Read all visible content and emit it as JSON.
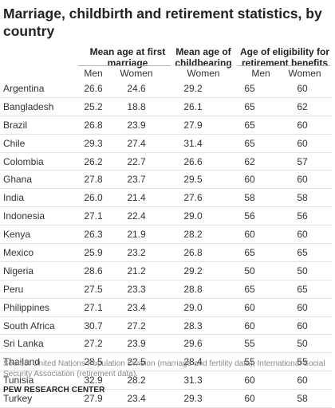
{
  "title": "Marriage, childbirth and retirement statistics, by country",
  "groups": {
    "marriage": "Mean age at first marriage",
    "childbearing": "Mean age of childbearing",
    "retirement": "Age of eligibility for retirement benefits"
  },
  "subheaders": [
    "Men",
    "Women",
    "Women",
    "Men",
    "Women"
  ],
  "rows": [
    [
      "Argentina",
      "26.6",
      "24.6",
      "29.2",
      "65",
      "60"
    ],
    [
      "Bangladesh",
      "25.2",
      "18.8",
      "26.1",
      "65",
      "62"
    ],
    [
      "Brazil",
      "26.8",
      "23.9",
      "27.9",
      "65",
      "60"
    ],
    [
      "Chile",
      "29.3",
      "27.4",
      "31.4",
      "65",
      "60"
    ],
    [
      "Colombia",
      "26.2",
      "22.7",
      "26.6",
      "62",
      "57"
    ],
    [
      "Ghana",
      "27.8",
      "23.7",
      "29.5",
      "60",
      "60"
    ],
    [
      "India",
      "26.0",
      "21.4",
      "27.6",
      "58",
      "58"
    ],
    [
      "Indonesia",
      "27.1",
      "22.4",
      "29.0",
      "56",
      "56"
    ],
    [
      "Kenya",
      "26.3",
      "21.9",
      "28.2",
      "60",
      "60"
    ],
    [
      "Mexico",
      "25.9",
      "23.2",
      "26.8",
      "65",
      "65"
    ],
    [
      "Nigeria",
      "28.6",
      "21.2",
      "29.2",
      "50",
      "50"
    ],
    [
      "Peru",
      "27.5",
      "23.3",
      "28.8",
      "65",
      "65"
    ],
    [
      "Philippines",
      "27.1",
      "23.4",
      "29.0",
      "60",
      "60"
    ],
    [
      "South Africa",
      "30.7",
      "27.2",
      "28.3",
      "60",
      "60"
    ],
    [
      "Sri Lanka",
      "27.2",
      "23.9",
      "29.6",
      "55",
      "50"
    ],
    [
      "Thailand",
      "28.5",
      "22.5",
      "28.4",
      "55",
      "55"
    ],
    [
      "Tunisia",
      "32.9",
      "28.2",
      "31.3",
      "60",
      "60"
    ],
    [
      "Turkey",
      "27.9",
      "23.4",
      "29.3",
      "60",
      "58"
    ]
  ],
  "source": "Source: United Nations Population Division (marriage and fertility data); International Social Security Association (retirement data).",
  "credit": "PEW RESEARCH CENTER"
}
